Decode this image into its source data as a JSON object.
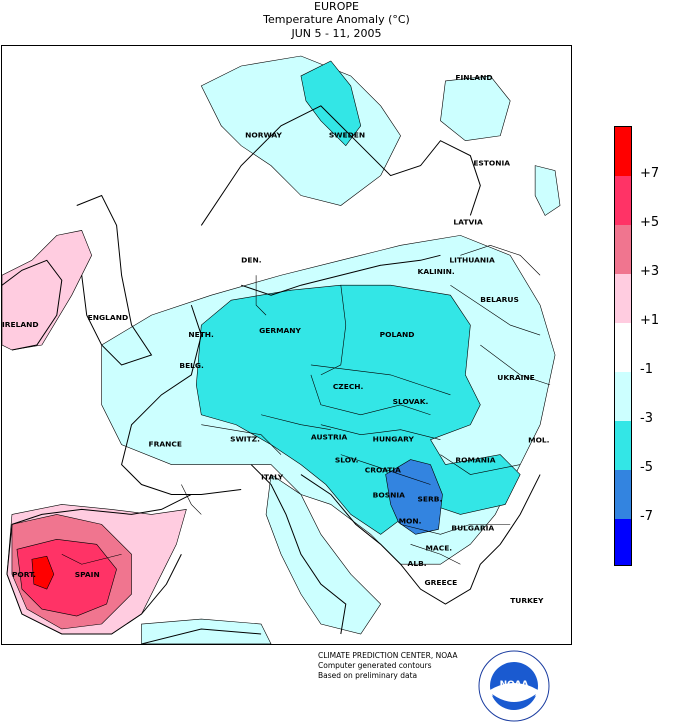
{
  "title": {
    "region": "EUROPE",
    "variable": "Temperature Anomaly (°C)",
    "period": "JUN 5 - 11, 2005"
  },
  "countries": [
    {
      "id": "finland",
      "label": "FINLAND"
    },
    {
      "id": "norway",
      "label": "NORWAY"
    },
    {
      "id": "sweden",
      "label": "SWEDEN"
    },
    {
      "id": "estonia",
      "label": "ESTONIA"
    },
    {
      "id": "latvia",
      "label": "LATVIA"
    },
    {
      "id": "lithuania",
      "label": "LITHUANIA"
    },
    {
      "id": "kaliningrad",
      "label": "KALININ."
    },
    {
      "id": "belarus",
      "label": "BELARUS"
    },
    {
      "id": "denmark",
      "label": "DEN."
    },
    {
      "id": "ireland",
      "label": "IRELAND"
    },
    {
      "id": "england",
      "label": "ENGLAND"
    },
    {
      "id": "netherlands",
      "label": "NETH."
    },
    {
      "id": "belgium",
      "label": "BELG."
    },
    {
      "id": "germany",
      "label": "GERMANY"
    },
    {
      "id": "poland",
      "label": "POLAND"
    },
    {
      "id": "ukraine",
      "label": "UKRAINE"
    },
    {
      "id": "czech",
      "label": "CZECH."
    },
    {
      "id": "slovakia",
      "label": "SLOVAK."
    },
    {
      "id": "france",
      "label": "FRANCE"
    },
    {
      "id": "switzerland",
      "label": "SWITZ."
    },
    {
      "id": "austria",
      "label": "AUSTRIA"
    },
    {
      "id": "hungary",
      "label": "HUNGARY"
    },
    {
      "id": "moldova",
      "label": "MOL."
    },
    {
      "id": "romania",
      "label": "ROMANIA"
    },
    {
      "id": "slovenia",
      "label": "SLOV."
    },
    {
      "id": "croatia",
      "label": "CROATIA"
    },
    {
      "id": "italy",
      "label": "ITALY"
    },
    {
      "id": "bosnia",
      "label": "BOSNIA"
    },
    {
      "id": "serbia",
      "label": "SERB."
    },
    {
      "id": "montenegro",
      "label": "MON."
    },
    {
      "id": "bulgaria",
      "label": "BULGARIA"
    },
    {
      "id": "macedonia",
      "label": "MACE."
    },
    {
      "id": "albania",
      "label": "ALB."
    },
    {
      "id": "greece",
      "label": "GREECE"
    },
    {
      "id": "turkey",
      "label": "TURKEY"
    },
    {
      "id": "portugal",
      "label": "PORT."
    },
    {
      "id": "spain",
      "label": "SPAIN"
    }
  ],
  "legend": {
    "labels": [
      "+7",
      "+5",
      "+3",
      "+1",
      "-1",
      "-3",
      "-5",
      "-7"
    ],
    "colors": [
      "#ff0000",
      "#ff3366",
      "#f0758f",
      "#ffcce0",
      "#ffffff",
      "#ccffff",
      "#33e6e6",
      "#3384e0",
      "#0000ff"
    ]
  },
  "credits": {
    "line1": "CLIMATE PREDICTION CENTER, NOAA",
    "line2": "Computer generated contours",
    "line3": "Based on preliminary data"
  },
  "logo": {
    "text": "NOAA"
  },
  "colors": {
    "ocean": "#ffffff",
    "land_neutral": "#ffffff",
    "cool_light": "#ccffff",
    "cool_mid": "#33e6e6",
    "cool_dark": "#3384e0"
  }
}
